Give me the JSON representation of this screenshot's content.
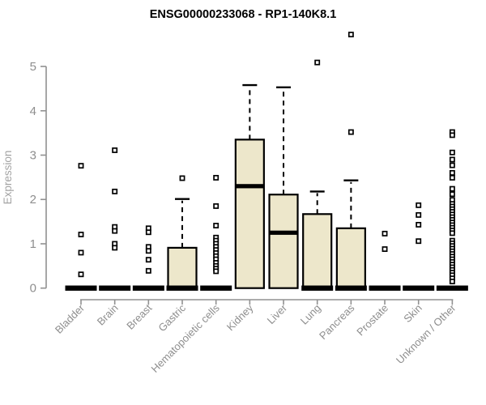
{
  "chart_data": {
    "type": "boxplot",
    "title": "ENSG00000233068 - RP1-140K8.1",
    "ylabel": "Expression",
    "xlabel": "",
    "ylim": [
      0,
      5
    ],
    "yticks": [
      0,
      1,
      2,
      3,
      4,
      5
    ],
    "grid": false,
    "legend": false,
    "categories": [
      "Bladder",
      "Brain",
      "Breast",
      "Gastric",
      "Hematopoietic cells",
      "Kidney",
      "Liver",
      "Lung",
      "Pancreas",
      "Prostate",
      "Skin",
      "Unknown / Other"
    ],
    "boxes": [
      {
        "category": "Bladder",
        "whisker_low": 0,
        "q1": 0,
        "median": 0,
        "q3": 0,
        "whisker_high": 0,
        "outliers": [
          2.76,
          1.21,
          0.8,
          0.31
        ]
      },
      {
        "category": "Brain",
        "whisker_low": 0,
        "q1": 0,
        "median": 0,
        "q3": 0,
        "whisker_high": 0,
        "outliers": [
          3.11,
          2.18,
          1.38,
          1.29,
          1.0,
          0.91
        ]
      },
      {
        "category": "Breast",
        "whisker_low": 0,
        "q1": 0,
        "median": 0,
        "q3": 0,
        "whisker_high": 0,
        "outliers": [
          1.35,
          1.26,
          0.93,
          0.84,
          0.64,
          0.39
        ]
      },
      {
        "category": "Gastric",
        "whisker_low": 0,
        "q1": 0,
        "median": 0,
        "q3": 0.91,
        "whisker_high": 2.01,
        "outliers": [
          2.48
        ]
      },
      {
        "category": "Hematopoietic cells",
        "whisker_low": 0,
        "q1": 0,
        "median": 0,
        "q3": 0,
        "whisker_high": 0,
        "outliers": [
          2.49,
          1.85,
          1.41,
          1.14,
          1.07,
          1.0,
          0.93,
          0.86,
          0.79,
          0.72,
          0.65,
          0.57,
          0.5,
          0.44,
          0.38
        ]
      },
      {
        "category": "Kidney",
        "whisker_low": 0,
        "q1": 0,
        "median": 2.3,
        "q3": 3.35,
        "whisker_high": 4.58,
        "outliers": []
      },
      {
        "category": "Liver",
        "whisker_low": 0,
        "q1": 0,
        "median": 1.25,
        "q3": 2.11,
        "whisker_high": 4.53,
        "outliers": []
      },
      {
        "category": "Lung",
        "whisker_low": 0,
        "q1": 0,
        "median": 0,
        "q3": 1.67,
        "whisker_high": 2.18,
        "outliers": [
          5.09
        ]
      },
      {
        "category": "Pancreas",
        "whisker_low": 0,
        "q1": 0,
        "median": 0,
        "q3": 1.35,
        "whisker_high": 2.43,
        "outliers": [
          5.72,
          3.52
        ]
      },
      {
        "category": "Prostate",
        "whisker_low": 0,
        "q1": 0,
        "median": 0,
        "q3": 0,
        "whisker_high": 0,
        "outliers": [
          1.23,
          0.88
        ]
      },
      {
        "category": "Skin",
        "whisker_low": 0,
        "q1": 0,
        "median": 0,
        "q3": 0,
        "whisker_high": 0,
        "outliers": [
          1.87,
          1.65,
          1.43,
          1.06
        ]
      },
      {
        "category": "Unknown / Other",
        "whisker_low": 0,
        "q1": 0,
        "median": 0,
        "q3": 0,
        "whisker_high": 0,
        "outliers": [
          3.52,
          3.45,
          3.06,
          2.9,
          2.77,
          2.6,
          2.49,
          2.24,
          2.12,
          1.99,
          1.9,
          1.84,
          1.78,
          1.72,
          1.66,
          1.6,
          1.54,
          1.48,
          1.42,
          1.36,
          1.3,
          1.24,
          1.07,
          1.01,
          0.95,
          0.89,
          0.83,
          0.77,
          0.71,
          0.65,
          0.59,
          0.53,
          0.47,
          0.41,
          0.35,
          0.29,
          0.22,
          0.15
        ]
      }
    ],
    "colors": {
      "box_fill": "#ede7cb",
      "box_stroke": "#000000",
      "median": "#000000",
      "outlier_stroke": "#000000",
      "outlier_fill": "#ffffff",
      "axis": "#919191",
      "tick_label": "#8e8e8e",
      "title": "#000000",
      "ylabel": "#a3a3a3",
      "background": "#ffffff"
    }
  }
}
